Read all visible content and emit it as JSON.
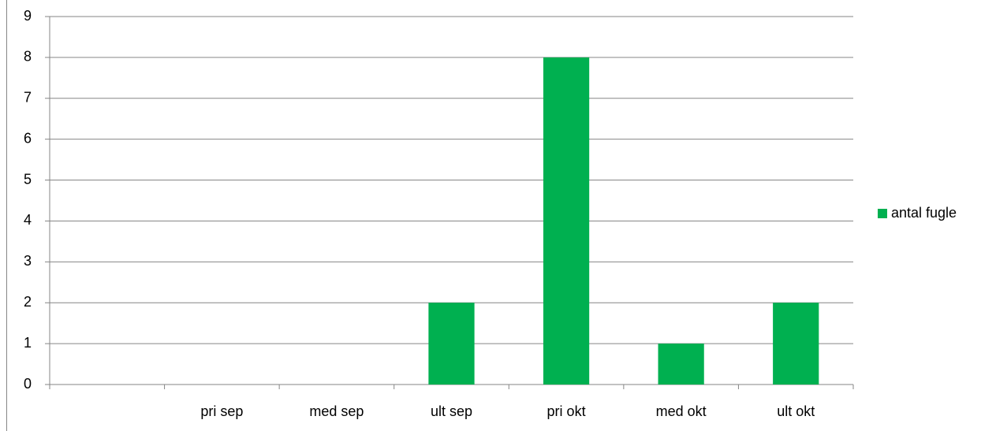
{
  "chart_data": {
    "type": "bar",
    "categories": [
      null,
      "pri sep",
      "med sep",
      "ult sep",
      "pri okt",
      "med okt",
      "ult okt"
    ],
    "series": [
      {
        "name": "antal fugle",
        "color": "#00b050",
        "values": [
          null,
          0,
          0,
          2,
          8,
          1,
          2
        ]
      }
    ],
    "ylim": [
      0,
      9
    ],
    "yticks": [
      0,
      1,
      2,
      3,
      4,
      5,
      6,
      7,
      8,
      9
    ],
    "grid": true,
    "legend": "right"
  }
}
